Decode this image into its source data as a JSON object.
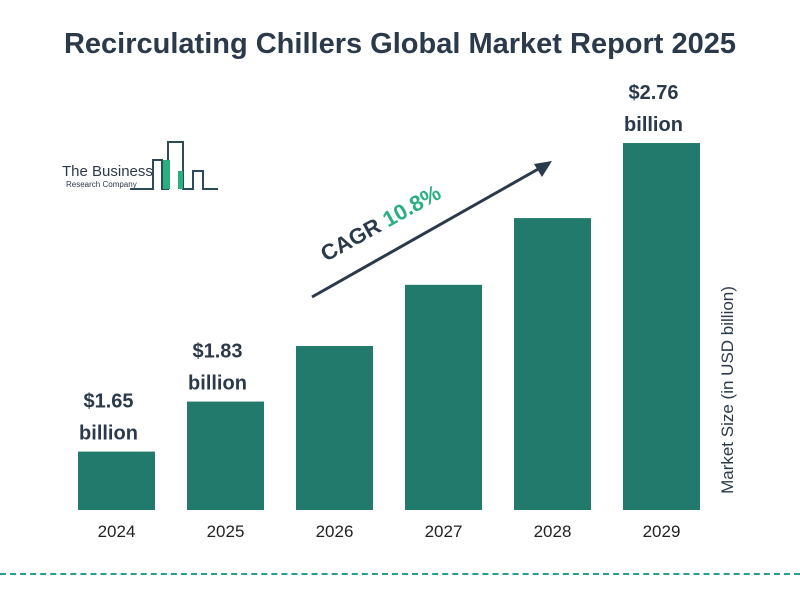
{
  "chart_data": {
    "type": "bar",
    "title": "Recirculating Chillers Global Market Report 2025",
    "ylabel": "Market Size (in USD billion)",
    "categories": [
      "2024",
      "2025",
      "2026",
      "2027",
      "2028",
      "2029"
    ],
    "values": [
      1.65,
      1.83,
      2.03,
      2.25,
      2.49,
      2.76
    ],
    "data_labels": [
      "$1.65\nbillion",
      "$1.83\nbillion",
      "",
      "",
      "",
      "$2.76\nbillion"
    ],
    "annotation": {
      "prefix": "CAGR ",
      "value": "10.8%"
    },
    "grid": false,
    "colors": {
      "bar": "#217a6b",
      "title": "#2b3a4a",
      "cagr": "#2ab07f"
    }
  },
  "logo": {
    "line1": "The Business",
    "line2": "Research Company"
  }
}
